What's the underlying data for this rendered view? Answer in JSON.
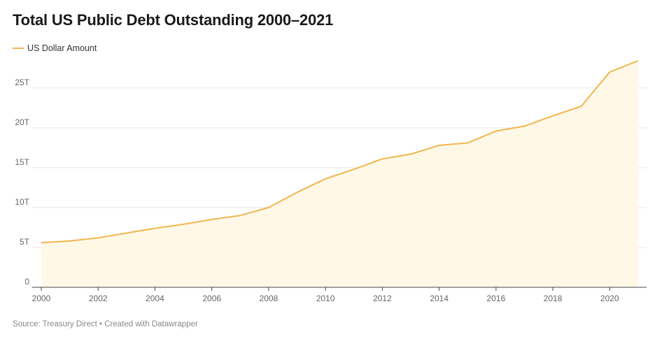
{
  "colors": {
    "line": "#f0b64e",
    "fill": "#fff8e6",
    "grid": "#e8e8e8",
    "axis": "#444444"
  },
  "source_text": "Source: Treasury Direct • Created with Datawrapper",
  "chart_data": {
    "type": "area",
    "title": "Total US Public Debt Outstanding 2000–2021",
    "xlabel": "",
    "ylabel": "",
    "legend": [
      "US Dollar Amount"
    ],
    "legend_position": "top-left",
    "grid": true,
    "x": [
      2000,
      2001,
      2002,
      2003,
      2004,
      2005,
      2006,
      2007,
      2008,
      2009,
      2010,
      2011,
      2012,
      2013,
      2014,
      2015,
      2016,
      2017,
      2018,
      2019,
      2020,
      2021
    ],
    "series": [
      {
        "name": "US Dollar Amount",
        "unit": "trillion USD",
        "values": [
          5.6,
          5.8,
          6.2,
          6.8,
          7.4,
          7.9,
          8.5,
          9.0,
          10.0,
          11.9,
          13.6,
          14.8,
          16.1,
          16.7,
          17.8,
          18.1,
          19.6,
          20.2,
          21.5,
          22.7,
          27.0,
          28.4
        ]
      }
    ],
    "xlim": [
      2000,
      2021
    ],
    "ylim": [
      0,
      28.4
    ],
    "x_ticks": [
      2000,
      2002,
      2004,
      2006,
      2008,
      2010,
      2012,
      2014,
      2016,
      2018,
      2020
    ],
    "y_ticks": [
      0,
      5,
      10,
      15,
      20,
      25
    ],
    "y_tick_labels": [
      "0",
      "5T",
      "10T",
      "15T",
      "20T",
      "25T"
    ]
  }
}
